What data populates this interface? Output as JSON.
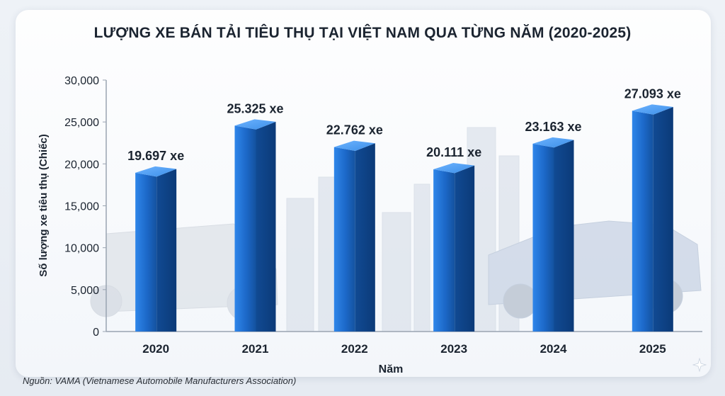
{
  "chart_data": {
    "type": "bar",
    "title": "LƯỢNG XE BÁN TẢI TIÊU THỤ TẠI VIỆT NAM QUA TỪNG NĂM (2020-2025)",
    "xlabel": "Năm",
    "ylabel": "Số lượng xe tiêu thụ (Chiếc)",
    "categories": [
      "2020",
      "2021",
      "2022",
      "2023",
      "2024",
      "2025"
    ],
    "values": [
      19697,
      25325,
      22762,
      20111,
      23163,
      27093
    ],
    "data_labels": [
      "19.697 xe",
      "25.325 xe",
      "22.762 xe",
      "20.111 xe",
      "23.163 xe",
      "27.093 xe"
    ],
    "ylim": [
      0,
      30000
    ],
    "yticks": [
      0,
      5000,
      10000,
      15000,
      20000,
      25000,
      30000
    ],
    "ytick_labels": [
      "0",
      "5,000",
      "10,000",
      "15,000",
      "20,000",
      "25,000",
      "30,000"
    ],
    "grid": false,
    "legend": "none",
    "bar_color": "#1e6fd0"
  },
  "source_note": "Nguồn: VAMA (Vietnamese Automobile Manufacturers Association)",
  "decor": {
    "sparkle": "sparkle-icon"
  }
}
